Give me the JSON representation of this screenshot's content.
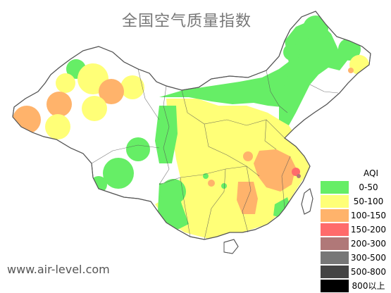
{
  "title": "全国空气质量指数",
  "watermark": "www.air-level.com",
  "legend": {
    "header": "AQI",
    "items": [
      {
        "label": "0-50",
        "color": "#66ee66"
      },
      {
        "label": "50-100",
        "color": "#ffff77"
      },
      {
        "label": "100-150",
        "color": "#ffb36b"
      },
      {
        "label": "150-200",
        "color": "#ff6b6b"
      },
      {
        "label": "200-300",
        "color": "#b07878"
      },
      {
        "label": "300-500",
        "color": "#777777"
      },
      {
        "label": "500-800",
        "color": "#444444"
      },
      {
        "label": "800以上",
        "color": "#000000"
      }
    ]
  },
  "colors": {
    "land": "#ffffff",
    "border": "#555555",
    "good": "#66ee66",
    "moderate": "#ffff77",
    "sensitive": "#ffb36b",
    "unhealthy": "#ff6b6b",
    "very_unhealthy": "#b07878"
  }
}
